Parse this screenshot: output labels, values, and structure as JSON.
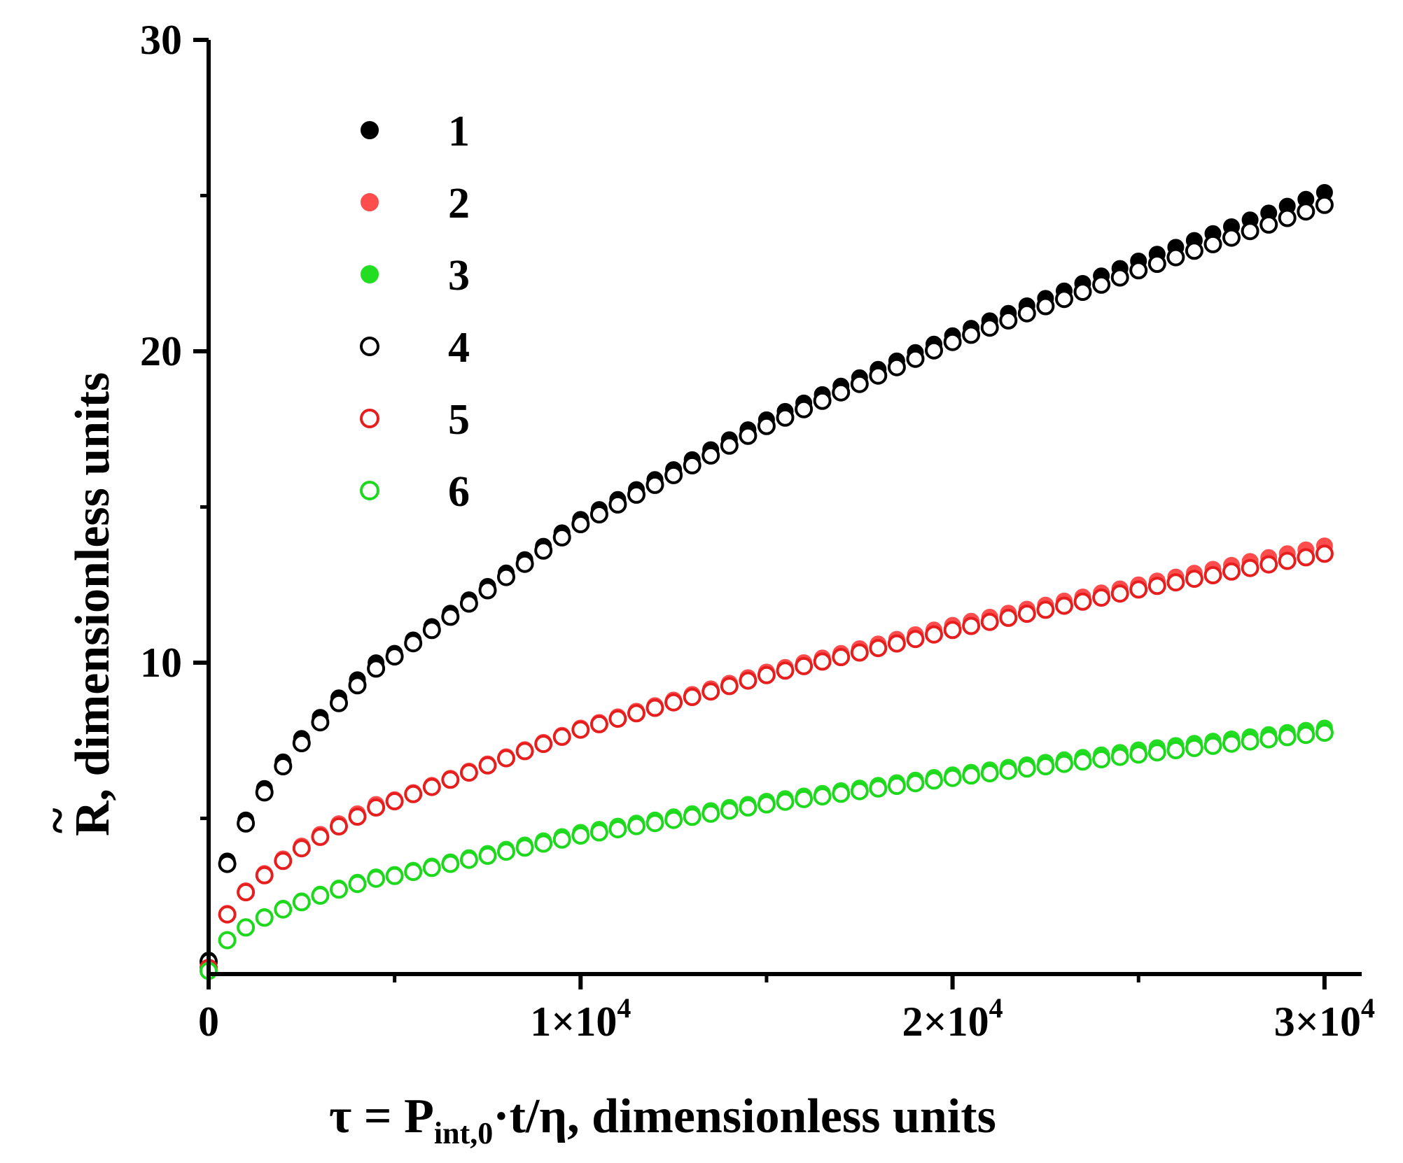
{
  "chart_data": {
    "type": "scatter",
    "title": "",
    "xlabel": {
      "prefix": "τ = P",
      "subscript": "int,0",
      "suffix": "·t/η, dimensionless units"
    },
    "ylabel": {
      "symbol": "R",
      "accent": "~",
      "suffix": ", dimensionless units"
    },
    "xlim": [
      0,
      31000
    ],
    "ylim": [
      0,
      30
    ],
    "x_ticks": [
      {
        "value": 0,
        "label": "0"
      },
      {
        "value": 10000,
        "label": "1×10",
        "exp": "4"
      },
      {
        "value": 20000,
        "label": "2×10",
        "exp": "4"
      },
      {
        "value": 30000,
        "label": "3×10",
        "exp": "4"
      }
    ],
    "x_minor_ticks": [
      5000,
      15000,
      25000
    ],
    "y_ticks": [
      {
        "value": 10,
        "label": "10"
      },
      {
        "value": 20,
        "label": "20"
      },
      {
        "value": 30,
        "label": "30"
      }
    ],
    "y_minor_ticks": [
      5,
      15,
      25
    ],
    "legend_position": "top-left",
    "series": [
      {
        "name": "1",
        "color": "#000000",
        "marker": "filled-circle",
        "x": [
          0,
          5000,
          10000,
          15000,
          20000,
          25000,
          30000
        ],
        "y": [
          0.45,
          10.3,
          14.6,
          17.8,
          20.5,
          22.9,
          25.1
        ]
      },
      {
        "name": "2",
        "color": "#ff4d4d",
        "marker": "filled-circle",
        "x": [
          0,
          5000,
          10000,
          15000,
          20000,
          25000,
          30000
        ],
        "y": [
          0.2,
          5.6,
          7.9,
          9.7,
          11.2,
          12.5,
          13.75
        ]
      },
      {
        "name": "3",
        "color": "#22dd22",
        "marker": "filled-circle",
        "x": [
          0,
          5000,
          10000,
          15000,
          20000,
          25000,
          30000
        ],
        "y": [
          0.1,
          3.2,
          4.55,
          5.55,
          6.4,
          7.2,
          7.9
        ]
      },
      {
        "name": "4",
        "color": "#000000",
        "marker": "open-circle",
        "x": [
          0,
          5000,
          10000,
          15000,
          20000,
          25000,
          30000
        ],
        "y": [
          0.4,
          10.2,
          14.45,
          17.6,
          20.3,
          22.6,
          24.7
        ]
      },
      {
        "name": "5",
        "color": "#e61e1e",
        "marker": "open-circle",
        "x": [
          0,
          5000,
          10000,
          15000,
          20000,
          25000,
          30000
        ],
        "y": [
          0.2,
          5.55,
          7.85,
          9.6,
          11.05,
          12.35,
          13.5
        ]
      },
      {
        "name": "6",
        "color": "#1ed81e",
        "marker": "open-circle",
        "x": [
          0,
          5000,
          10000,
          15000,
          20000,
          25000,
          30000
        ],
        "y": [
          0.1,
          3.15,
          4.45,
          5.45,
          6.3,
          7.05,
          7.75
        ]
      }
    ]
  }
}
